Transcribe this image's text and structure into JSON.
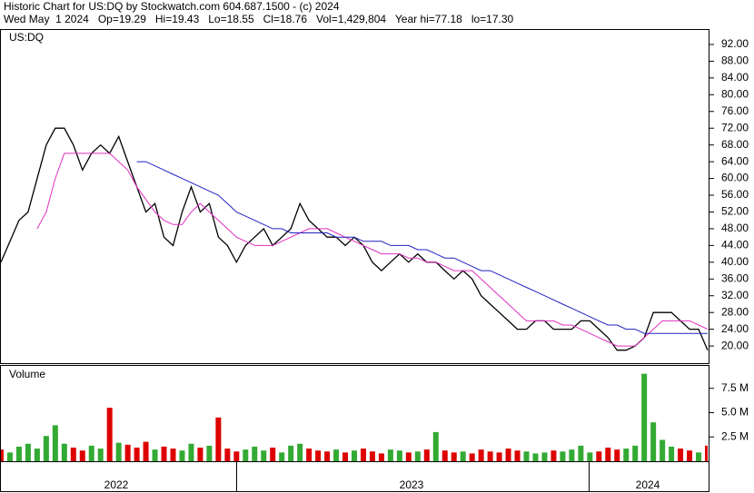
{
  "header": {
    "title": "Historic Chart for US:DQ by Stockwatch.com 604.687.1500 - (c) 2024",
    "subtitle": "Wed May  1 2024   Op=19.29   Hi=19.43   Lo=18.55   Cl=18.76   Vol=1,429,804   Year hi=77.18   lo=17.30"
  },
  "x_axis": {
    "labels": [
      "2022",
      "2023",
      "2024"
    ]
  },
  "chart_data": [
    {
      "type": "line",
      "label": "US:DQ",
      "ylim": [
        15.9,
        95.46
      ],
      "yticks": [
        {
          "value": 20,
          "label": "20.00"
        },
        {
          "value": 24,
          "label": "24.00"
        },
        {
          "value": 28,
          "label": "28.00"
        },
        {
          "value": 32,
          "label": "32.00"
        },
        {
          "value": 36,
          "label": "36.00"
        },
        {
          "value": 40,
          "label": "40.00"
        },
        {
          "value": 44,
          "label": "44.00"
        },
        {
          "value": 48,
          "label": "48.00"
        },
        {
          "value": 52,
          "label": "52.00"
        },
        {
          "value": 56,
          "label": "56.00"
        },
        {
          "value": 60,
          "label": "60.00"
        },
        {
          "value": 64,
          "label": "64.00"
        },
        {
          "value": 68,
          "label": "68.00"
        },
        {
          "value": 72,
          "label": "72.00"
        },
        {
          "value": 76,
          "label": "76.00"
        },
        {
          "value": 80,
          "label": "80.00"
        },
        {
          "value": 84,
          "label": "84.00"
        },
        {
          "value": 88,
          "label": "88.00"
        },
        {
          "value": 92,
          "label": "92.00"
        }
      ],
      "series": [
        {
          "color": "#000000",
          "values": [
            40,
            45,
            50,
            52,
            60,
            68,
            72,
            72,
            68,
            62,
            66,
            68,
            66,
            70,
            64,
            58,
            52,
            54,
            46,
            44,
            52,
            58,
            52,
            54,
            46,
            44,
            40,
            44,
            46,
            48,
            44,
            46,
            48,
            54,
            50,
            48,
            46,
            46,
            44,
            46,
            44,
            40,
            38,
            40,
            42,
            40,
            42,
            40,
            40,
            38,
            36,
            38,
            36,
            32,
            30,
            28,
            26,
            24,
            24,
            26,
            26,
            24,
            24,
            24,
            26,
            26,
            24,
            22,
            19,
            19,
            20,
            22,
            28,
            28,
            28,
            26,
            24,
            24,
            19
          ]
        },
        {
          "color": "#e030c0",
          "values": [
            null,
            null,
            null,
            null,
            48,
            52,
            60,
            66,
            66,
            66,
            66,
            66,
            66,
            64,
            62,
            58,
            55,
            52,
            50,
            49,
            49,
            52,
            54,
            52,
            50,
            48,
            46,
            45,
            44,
            44,
            44,
            45,
            46,
            47,
            48,
            48,
            48,
            47,
            46,
            45,
            44,
            43,
            42,
            42,
            42,
            41,
            41,
            40,
            40,
            39,
            38,
            38,
            38,
            36,
            34,
            32,
            30,
            28,
            26,
            26,
            26,
            26,
            25,
            25,
            24,
            23,
            22,
            21,
            20,
            20,
            20,
            22,
            24,
            26,
            26,
            26,
            26,
            25,
            24
          ]
        },
        {
          "color": "#2020c0",
          "values": [
            null,
            null,
            null,
            null,
            null,
            null,
            null,
            null,
            null,
            null,
            null,
            null,
            null,
            null,
            null,
            64,
            64,
            63,
            62,
            61,
            60,
            59,
            58,
            57,
            56,
            54,
            52,
            51,
            50,
            49,
            48,
            48,
            47,
            47,
            47,
            47,
            47,
            46,
            46,
            46,
            45,
            45,
            45,
            44,
            44,
            44,
            43,
            43,
            42,
            41,
            41,
            40,
            39,
            38,
            38,
            37,
            36,
            35,
            34,
            33,
            32,
            31,
            30,
            29,
            28,
            27,
            26,
            25,
            25,
            24,
            24,
            23,
            23,
            23,
            23,
            23,
            23,
            23,
            23
          ]
        }
      ]
    },
    {
      "type": "bar",
      "label": "Volume",
      "up_color": "#33aa33",
      "down_color": "#dd0000",
      "ylim": [
        0,
        9.81
      ],
      "yticks": [
        {
          "value": 2.5,
          "label": "2.5 M"
        },
        {
          "value": 5,
          "label": "5.0 M"
        },
        {
          "value": 7.5,
          "label": "7.5 M"
        }
      ],
      "values": [
        1.2,
        0.9,
        1.5,
        1.8,
        1.3,
        2.6,
        3.7,
        1.8,
        1.4,
        1.1,
        1.6,
        1.3,
        5.5,
        1.9,
        1.7,
        1.4,
        2.0,
        1.2,
        1.5,
        1.3,
        1.1,
        1.8,
        1.4,
        1.6,
        4.5,
        1.3,
        1.0,
        1.2,
        1.5,
        1.1,
        1.4,
        0.9,
        1.6,
        1.8,
        1.3,
        1.1,
        1.0,
        1.2,
        0.9,
        1.1,
        1.3,
        1.0,
        0.8,
        1.2,
        1.1,
        0.9,
        1.0,
        1.2,
        3.0,
        1.1,
        0.9,
        1.0,
        0.8,
        1.2,
        1.0,
        0.9,
        1.3,
        1.1,
        1.0,
        0.8,
        0.9,
        1.1,
        1.0,
        1.2,
        1.6,
        0.9,
        1.0,
        1.4,
        1.2,
        1.3,
        1.6,
        9.0,
        4.0,
        2.2,
        1.5,
        1.3,
        1.1,
        0.9,
        1.6
      ]
    }
  ]
}
